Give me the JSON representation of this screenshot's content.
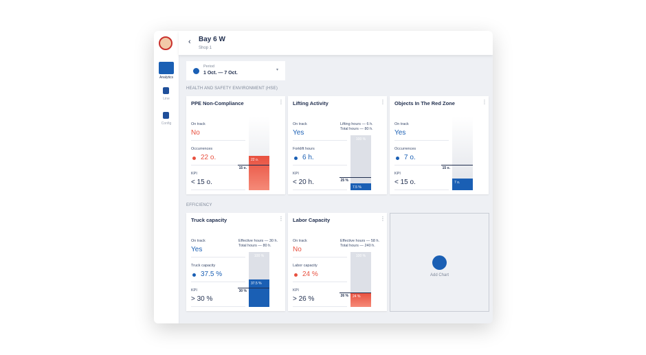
{
  "sidebar": {
    "nav": [
      {
        "label": "Analytics"
      },
      {
        "label": "Line"
      },
      {
        "label": "Config"
      }
    ]
  },
  "header": {
    "title": "Bay 6 W",
    "subtitle": "Shop 1"
  },
  "period": {
    "label": "Period",
    "value": "1 Oct. — 7 Oct."
  },
  "sections": [
    {
      "title": "HEALTH AND SAFETY ENVIRONMENT (HSE)",
      "cards": [
        {
          "title": "PPE Non-Compliance",
          "status_label": "On track",
          "status": "No",
          "status_color": "#e8503f",
          "metric_label": "Occurrences",
          "metric": "22 o.",
          "metric_color": "#e8503f",
          "kpi_label": "KPI",
          "kpi": "< 15 o.",
          "bar_label": "22 o.",
          "threshold_label": "15 o."
        },
        {
          "title": "Lifting Activity",
          "status_label": "On track",
          "status": "Yes",
          "status_color": "#1a5fb4",
          "metric_label": "Forklift hours",
          "metric": "6 h.",
          "metric_color": "#1a5fb4",
          "kpi_label": "KPI",
          "kpi": "< 20 h.",
          "notes": [
            "Lifting hours — 6 h.",
            "Total hours — 80 h."
          ],
          "scale_label": "100 %",
          "bar_label": "7.5 %",
          "threshold_label": "25 %"
        },
        {
          "title": "Objects In The Red Zone",
          "status_label": "On track",
          "status": "Yes",
          "status_color": "#1a5fb4",
          "metric_label": "Occurrences",
          "metric": "7 o.",
          "metric_color": "#1a5fb4",
          "kpi_label": "KPI",
          "kpi": "< 15 o.",
          "bar_label": "7 o.",
          "threshold_label": "15 o."
        }
      ]
    },
    {
      "title": "EFFICIENCY",
      "cards": [
        {
          "title": "Truck capacity",
          "status_label": "On track",
          "status": "Yes",
          "status_color": "#1a5fb4",
          "metric_label": "Truck capacity",
          "metric": "37.5 %",
          "metric_color": "#1a5fb4",
          "kpi_label": "KPI",
          "kpi": "> 30 %",
          "notes": [
            "Effective hours — 30 h.",
            "Total hours — 80 h."
          ],
          "scale_label": "100 %",
          "bar_label": "37.5 %",
          "threshold_label": "30 %"
        },
        {
          "title": "Labor Capacity",
          "status_label": "On track",
          "status": "No",
          "status_color": "#e8503f",
          "metric_label": "Labor capacity",
          "metric": "24 %",
          "metric_color": "#e8503f",
          "kpi_label": "KPI",
          "kpi": "> 26 %",
          "notes": [
            "Effective hours — 58 h.",
            "Total hours — 240 h."
          ],
          "scale_label": "100 %",
          "bar_label": "24 %",
          "threshold_label": "26 %"
        }
      ]
    }
  ],
  "add_chart": "Add Chart"
}
